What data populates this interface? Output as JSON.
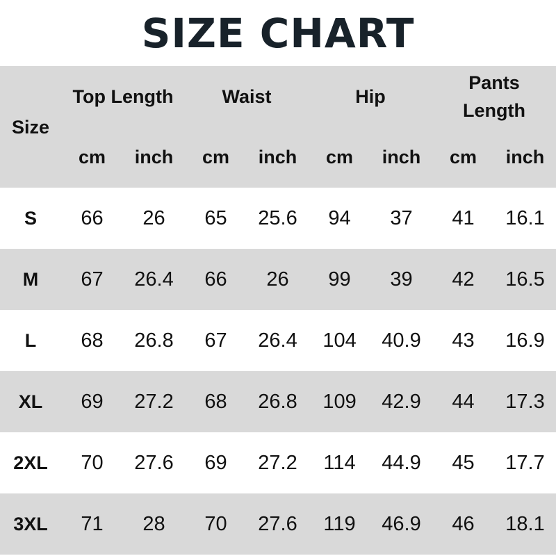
{
  "title": "SIZE CHART",
  "header": {
    "size": "Size",
    "groups": [
      "Top Length",
      "Waist",
      "Hip",
      "Pants Length"
    ],
    "units": [
      "cm",
      "inch"
    ]
  },
  "rows": [
    {
      "size": "S",
      "values": [
        "66",
        "26",
        "65",
        "25.6",
        "94",
        "37",
        "41",
        "16.1"
      ]
    },
    {
      "size": "M",
      "values": [
        "67",
        "26.4",
        "66",
        "26",
        "99",
        "39",
        "42",
        "16.5"
      ]
    },
    {
      "size": "L",
      "values": [
        "68",
        "26.8",
        "67",
        "26.4",
        "104",
        "40.9",
        "43",
        "16.9"
      ]
    },
    {
      "size": "XL",
      "values": [
        "69",
        "27.2",
        "68",
        "26.8",
        "109",
        "42.9",
        "44",
        "17.3"
      ]
    },
    {
      "size": "2XL",
      "values": [
        "70",
        "27.6",
        "69",
        "27.2",
        "114",
        "44.9",
        "45",
        "17.7"
      ]
    },
    {
      "size": "3XL",
      "values": [
        "71",
        "28",
        "70",
        "27.6",
        "119",
        "46.9",
        "46",
        "18.1"
      ]
    }
  ],
  "colors": {
    "header_bg": "#d9d9d9",
    "title": "#18222a"
  }
}
